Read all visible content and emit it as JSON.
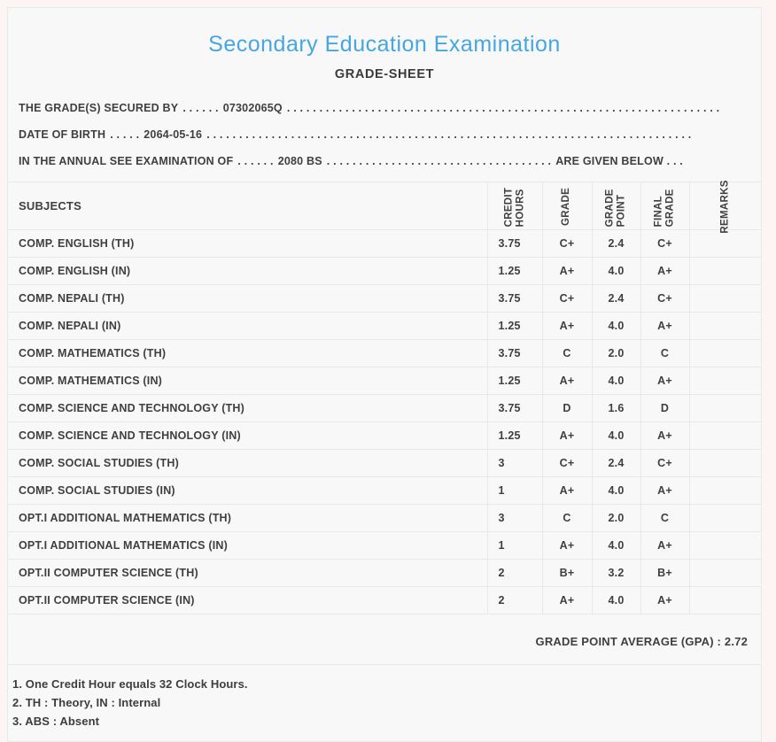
{
  "header": {
    "title": "Secondary Education Examination",
    "subtitle": "GRADE-SHEET"
  },
  "info_lines": [
    {
      "label": "THE GRADE(S) SECURED BY",
      "pre_dots": ". . . . . .",
      "value": "07302065Q",
      "post_dots": ". . . . . . . . . . . . . . . . . . . . . . . . . . . . . . . . . . . . . . . . . . . . . . . . . . . . . . . . . . . . . . . . . . . . . . . . . . .",
      "tail": ""
    },
    {
      "label": "DATE OF BIRTH",
      "pre_dots": ". . . . .",
      "value": "2064-05-16",
      "post_dots": ". . . . . . . . . . . . . . . . . . . . . . . . . . . . . . . . . . . . . . . . . . . . . . . . . . . . . . . . . . . . . . . . . . . . . . . . . . .",
      "tail": ""
    },
    {
      "label": "IN THE ANNUAL SEE EXAMINATION OF",
      "pre_dots": ". . . . . .",
      "value": "2080 BS",
      "post_dots": ". . . . . . . . . . . . . . . . . . . . . . . . . . . . . . . . . . .",
      "tail": "ARE GIVEN BELOW . . ."
    }
  ],
  "table": {
    "headers": {
      "subjects": "SUBJECTS",
      "credit_hours": "CREDIT HOURS",
      "grade": "GRADE",
      "grade_point": "GRADE POINT",
      "final_grade": "FINAL GRADE",
      "remarks": "REMARKS"
    },
    "rows": [
      {
        "subject": "COMP. ENGLISH (TH)",
        "credit": "3.75",
        "grade": "C+",
        "point": "2.4",
        "final": "C+",
        "remarks": ""
      },
      {
        "subject": "COMP. ENGLISH (IN)",
        "credit": "1.25",
        "grade": "A+",
        "point": "4.0",
        "final": "A+",
        "remarks": ""
      },
      {
        "subject": "COMP. NEPALI (TH)",
        "credit": "3.75",
        "grade": "C+",
        "point": "2.4",
        "final": "C+",
        "remarks": ""
      },
      {
        "subject": "COMP. NEPALI (IN)",
        "credit": "1.25",
        "grade": "A+",
        "point": "4.0",
        "final": "A+",
        "remarks": ""
      },
      {
        "subject": "COMP. MATHEMATICS (TH)",
        "credit": "3.75",
        "grade": "C",
        "point": "2.0",
        "final": "C",
        "remarks": ""
      },
      {
        "subject": "COMP. MATHEMATICS (IN)",
        "credit": "1.25",
        "grade": "A+",
        "point": "4.0",
        "final": "A+",
        "remarks": ""
      },
      {
        "subject": "COMP. SCIENCE AND TECHNOLOGY (TH)",
        "credit": "3.75",
        "grade": "D",
        "point": "1.6",
        "final": "D",
        "remarks": ""
      },
      {
        "subject": "COMP. SCIENCE AND TECHNOLOGY (IN)",
        "credit": "1.25",
        "grade": "A+",
        "point": "4.0",
        "final": "A+",
        "remarks": ""
      },
      {
        "subject": "COMP. SOCIAL STUDIES (TH)",
        "credit": "3",
        "grade": "C+",
        "point": "2.4",
        "final": "C+",
        "remarks": ""
      },
      {
        "subject": "COMP. SOCIAL STUDIES (IN)",
        "credit": "1",
        "grade": "A+",
        "point": "4.0",
        "final": "A+",
        "remarks": ""
      },
      {
        "subject": "OPT.I ADDITIONAL MATHEMATICS (TH)",
        "credit": "3",
        "grade": "C",
        "point": "2.0",
        "final": "C",
        "remarks": ""
      },
      {
        "subject": "OPT.I ADDITIONAL MATHEMATICS (IN)",
        "credit": "1",
        "grade": "A+",
        "point": "4.0",
        "final": "A+",
        "remarks": ""
      },
      {
        "subject": "OPT.II COMPUTER SCIENCE (TH)",
        "credit": "2",
        "grade": "B+",
        "point": "3.2",
        "final": "B+",
        "remarks": ""
      },
      {
        "subject": "OPT.II COMPUTER SCIENCE (IN)",
        "credit": "2",
        "grade": "A+",
        "point": "4.0",
        "final": "A+",
        "remarks": ""
      }
    ],
    "gpa_line": "GRADE POINT AVERAGE (GPA) : 2.72"
  },
  "notes": [
    "1. One Credit Hour equals 32 Clock Hours.",
    "2. TH : Theory, IN : Internal",
    "3. ABS : Absent"
  ],
  "colors": {
    "title_blue": "#45a6e2",
    "text_dark": "#3f3f3f",
    "border": "#e8e8e8",
    "card_bg": "#f8f8f8",
    "page_bg": "#fdf4f4"
  }
}
